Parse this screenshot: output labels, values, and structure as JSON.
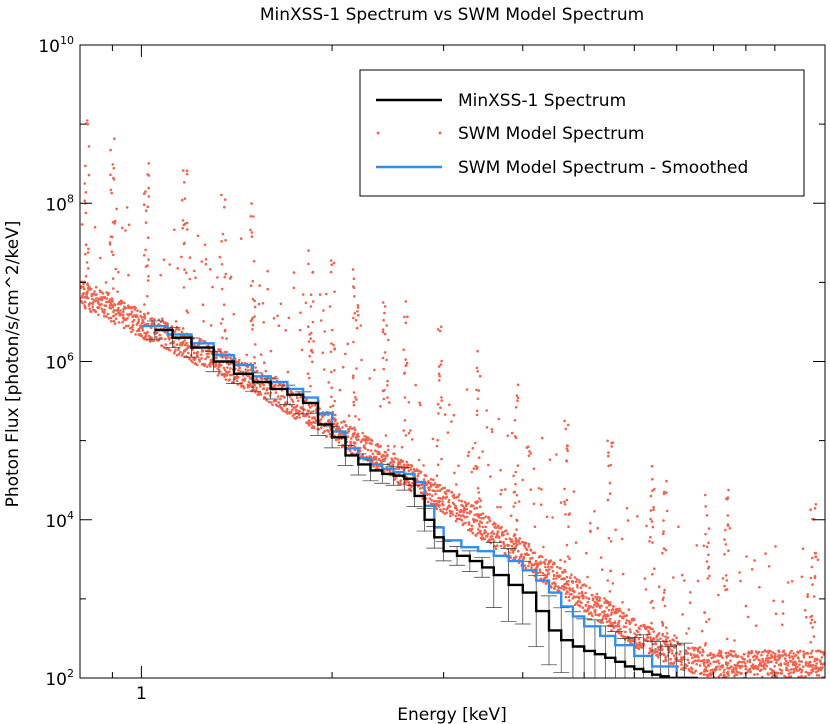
{
  "chart_data": {
    "type": "line",
    "title": "MinXSS-1 Spectrum vs SWM Model Spectrum",
    "xlabel": "Energy [keV]",
    "ylabel": "Photon Flux [photon/s/cm^2/keV]",
    "xscale": "log",
    "yscale": "log",
    "xlim": [
      0.8,
      12.0
    ],
    "ylim": [
      100,
      10000000000
    ],
    "x_ticks": [
      {
        "value": 1,
        "label": "1"
      }
    ],
    "y_ticks": [
      {
        "value": 100,
        "base": "10",
        "exp": "2"
      },
      {
        "value": 10000,
        "base": "10",
        "exp": "4"
      },
      {
        "value": 1000000,
        "base": "10",
        "exp": "6"
      },
      {
        "value": 100000000,
        "base": "10",
        "exp": "8"
      },
      {
        "value": 10000000000,
        "base": "10",
        "exp": "10"
      }
    ],
    "legend": {
      "position": "top-right",
      "entries": [
        {
          "label": "MinXSS-1 Spectrum",
          "color": "#000000",
          "style": "line"
        },
        {
          "label": "SWM Model Spectrum",
          "color": "#f4604a",
          "style": "dots"
        },
        {
          "label": "SWM Model Spectrum - Smoothed",
          "color": "#2f8ef0",
          "style": "line"
        }
      ]
    },
    "series": [
      {
        "name": "MinXSS-1 Spectrum",
        "color": "#000000",
        "x": [
          1.05,
          1.12,
          1.2,
          1.3,
          1.4,
          1.5,
          1.6,
          1.7,
          1.8,
          1.9,
          2.0,
          2.1,
          2.2,
          2.3,
          2.4,
          2.5,
          2.6,
          2.7,
          2.8,
          2.9,
          3.0,
          3.15,
          3.3,
          3.45,
          3.6,
          3.8,
          4.0,
          4.2,
          4.4,
          4.6,
          4.8,
          5.0,
          5.2,
          5.4,
          5.6,
          5.8,
          6.0,
          6.2,
          6.4,
          6.6,
          6.8,
          7.0,
          7.2
        ],
        "y": [
          2500000,
          2000000,
          1500000,
          1000000,
          700000,
          550000,
          450000,
          380000,
          300000,
          160000,
          110000,
          65000,
          50000,
          42000,
          38000,
          36000,
          33000,
          20000,
          10000,
          6000,
          4000,
          3500,
          3000,
          2500,
          2000,
          1500,
          1200,
          700,
          400,
          300,
          250,
          220,
          200,
          180,
          160,
          140,
          130,
          120,
          110,
          105,
          100,
          100,
          100
        ],
        "error_bars": "yes"
      },
      {
        "name": "SWM Model Spectrum - Smoothed",
        "color": "#2f8ef0",
        "x": [
          1.0,
          1.1,
          1.2,
          1.3,
          1.4,
          1.5,
          1.6,
          1.7,
          1.8,
          1.9,
          2.0,
          2.1,
          2.2,
          2.3,
          2.4,
          2.5,
          2.6,
          2.7,
          2.8,
          2.9,
          3.0,
          3.2,
          3.4,
          3.6,
          3.8,
          4.0,
          4.2,
          4.4,
          4.6,
          4.8,
          5.0,
          5.3,
          5.6,
          6.0,
          6.4,
          7.0
        ],
        "y": [
          2800000,
          2200000,
          1700000,
          1200000,
          900000,
          650000,
          550000,
          450000,
          350000,
          220000,
          130000,
          80000,
          60000,
          50000,
          44000,
          40000,
          38000,
          30000,
          15000,
          8000,
          5500,
          4500,
          4000,
          3500,
          3000,
          2300,
          1700,
          1200,
          800,
          600,
          450,
          340,
          260,
          190,
          140,
          100
        ]
      },
      {
        "name": "SWM Model Spectrum",
        "color": "#f4604a",
        "style": "scatter",
        "continuum": {
          "x": [
            0.8,
            1.0,
            1.5,
            2.0,
            3.0,
            4.0,
            5.0,
            6.0,
            7.0,
            8.0
          ],
          "y": [
            5000000,
            2000000,
            400000,
            100000,
            12000,
            2500,
            700,
            250,
            130,
            100
          ]
        },
        "line_energies_keV": [
          0.82,
          0.9,
          1.02,
          1.17,
          1.35,
          1.5,
          1.85,
          2.0,
          2.18,
          2.43,
          2.62,
          2.95,
          3.4,
          3.9,
          4.7,
          5.5,
          6.4,
          6.7,
          7.8,
          8.4,
          11.5
        ]
      }
    ]
  }
}
